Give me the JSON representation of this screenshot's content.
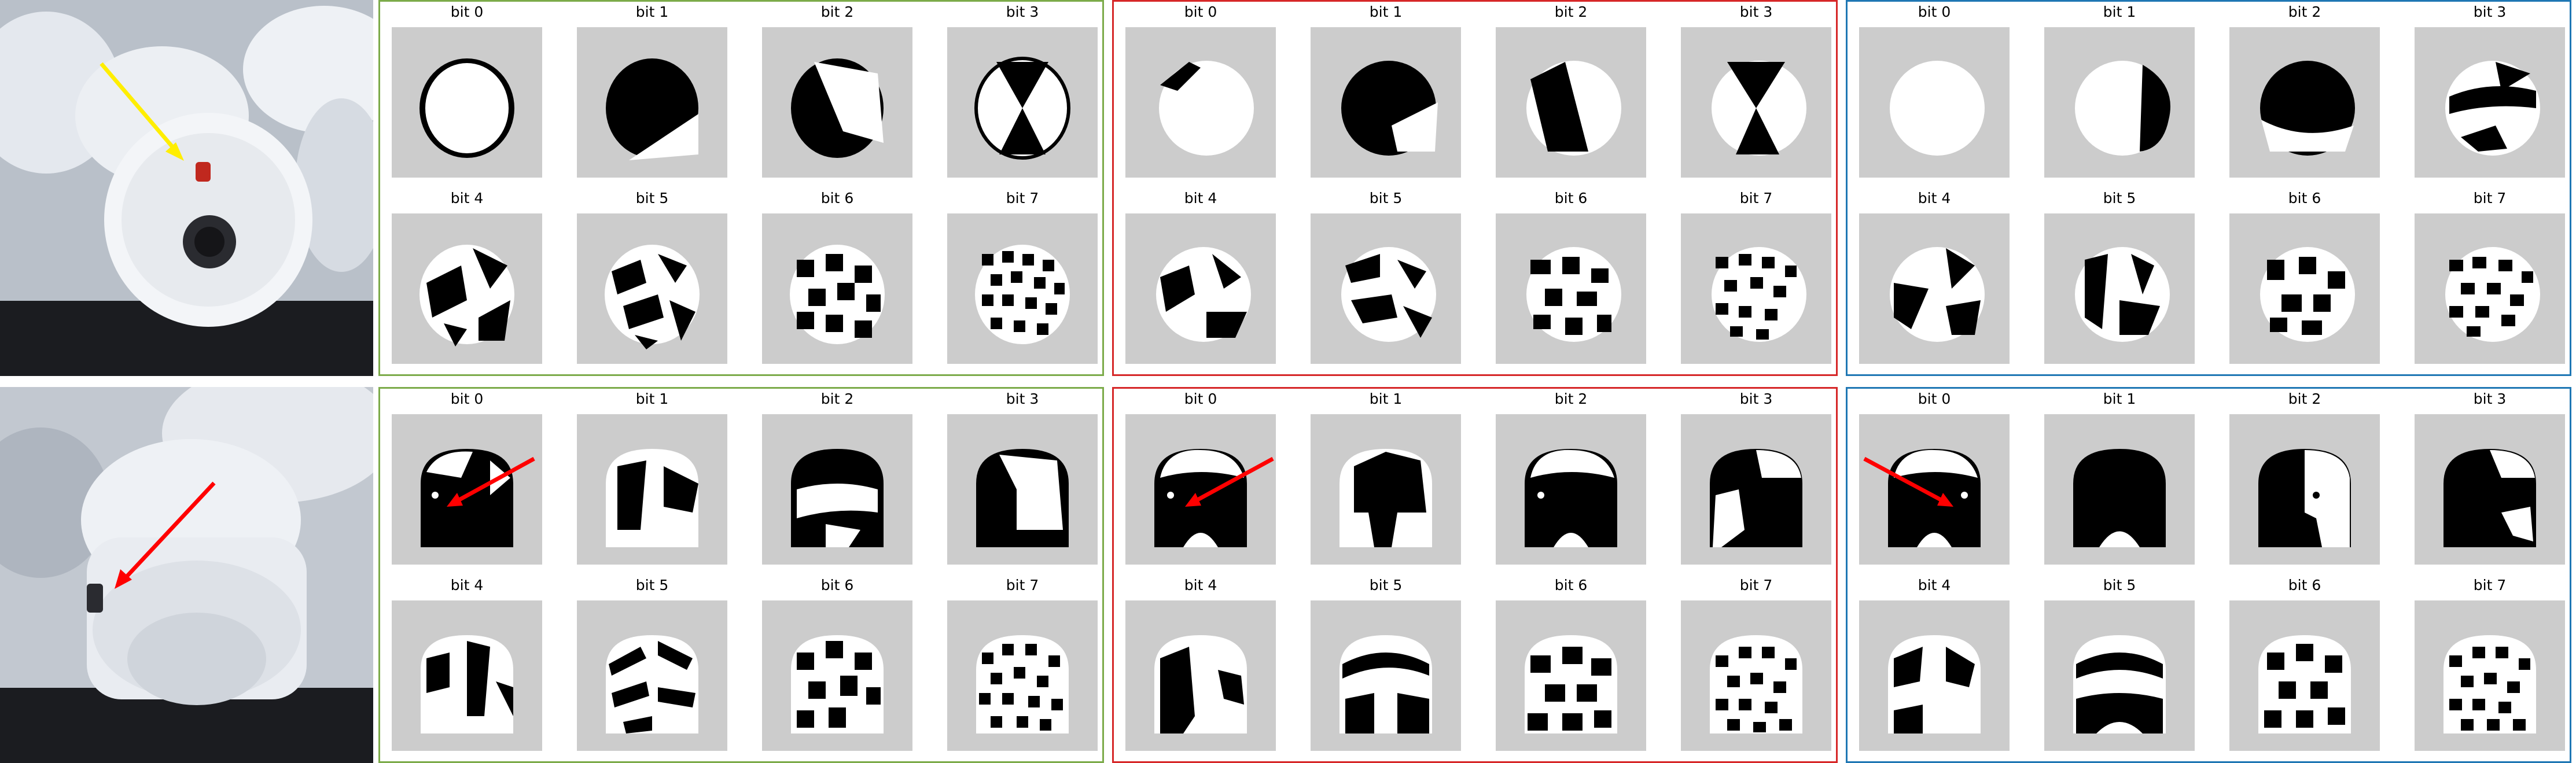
{
  "colors": {
    "panel_green": "#7cab4a",
    "panel_red": "#d62728",
    "panel_blue": "#1f77b4",
    "tile_background": "#cccccc",
    "arrow_yellow": "#ffee00",
    "arrow_red": "#ff0000"
  },
  "rows": [
    {
      "photo": {
        "content": "white-cylindrical-part-with-red-dot",
        "arrow_color": "yellow"
      },
      "panels": [
        {
          "color": "green",
          "bits": [
            "bit 0",
            "bit 1",
            "bit 2",
            "bit 3",
            "bit 4",
            "bit 5",
            "bit 6",
            "bit 7"
          ]
        },
        {
          "color": "red",
          "bits": [
            "bit 0",
            "bit 1",
            "bit 2",
            "bit 3",
            "bit 4",
            "bit 5",
            "bit 6",
            "bit 7"
          ]
        },
        {
          "color": "blue",
          "bits": [
            "bit 0",
            "bit 1",
            "bit 2",
            "bit 3",
            "bit 4",
            "bit 5",
            "bit 6",
            "bit 7"
          ]
        }
      ]
    },
    {
      "photo": {
        "content": "white-part-with-hole-on-side",
        "arrow_color": "red"
      },
      "panels": [
        {
          "color": "green",
          "bits": [
            "bit 0",
            "bit 1",
            "bit 2",
            "bit 3",
            "bit 4",
            "bit 5",
            "bit 6",
            "bit 7"
          ]
        },
        {
          "color": "red",
          "bits": [
            "bit 0",
            "bit 1",
            "bit 2",
            "bit 3",
            "bit 4",
            "bit 5",
            "bit 6",
            "bit 7"
          ]
        },
        {
          "color": "blue",
          "bits": [
            "bit 0",
            "bit 1",
            "bit 2",
            "bit 3",
            "bit 4",
            "bit 5",
            "bit 6",
            "bit 7"
          ]
        }
      ]
    }
  ]
}
